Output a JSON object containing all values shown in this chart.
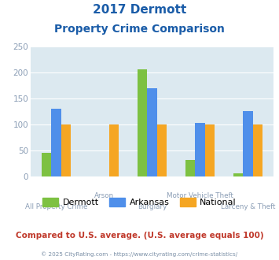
{
  "title_line1": "2017 Dermott",
  "title_line2": "Property Crime Comparison",
  "categories": [
    "All Property Crime",
    "Arson",
    "Burglary",
    "Motor Vehicle Theft",
    "Larceny & Theft"
  ],
  "cat_labels_row1": [
    "",
    "Arson",
    "",
    "Motor Vehicle Theft",
    ""
  ],
  "cat_labels_row2": [
    "All Property Crime",
    "",
    "Burglary",
    "",
    "Larceny & Theft"
  ],
  "series": {
    "Dermott": [
      46,
      0,
      206,
      32,
      7
    ],
    "Arkansas": [
      131,
      0,
      170,
      103,
      127
    ],
    "National": [
      100,
      101,
      101,
      101,
      101
    ]
  },
  "colors": {
    "Dermott": "#7dc142",
    "Arkansas": "#4f8fea",
    "National": "#f5a623"
  },
  "ylim": [
    0,
    250
  ],
  "yticks": [
    0,
    50,
    100,
    150,
    200,
    250
  ],
  "plot_bg_color": "#dce9f0",
  "title_color": "#1a5ca8",
  "axis_label_color": "#8a9db5",
  "footer_text": "Compared to U.S. average. (U.S. average equals 100)",
  "footer_color": "#c0392b",
  "credit_text": "© 2025 CityRating.com - https://www.cityrating.com/crime-statistics/",
  "credit_color": "#7a8fa6",
  "grid_color": "#ffffff",
  "bar_width": 0.2
}
